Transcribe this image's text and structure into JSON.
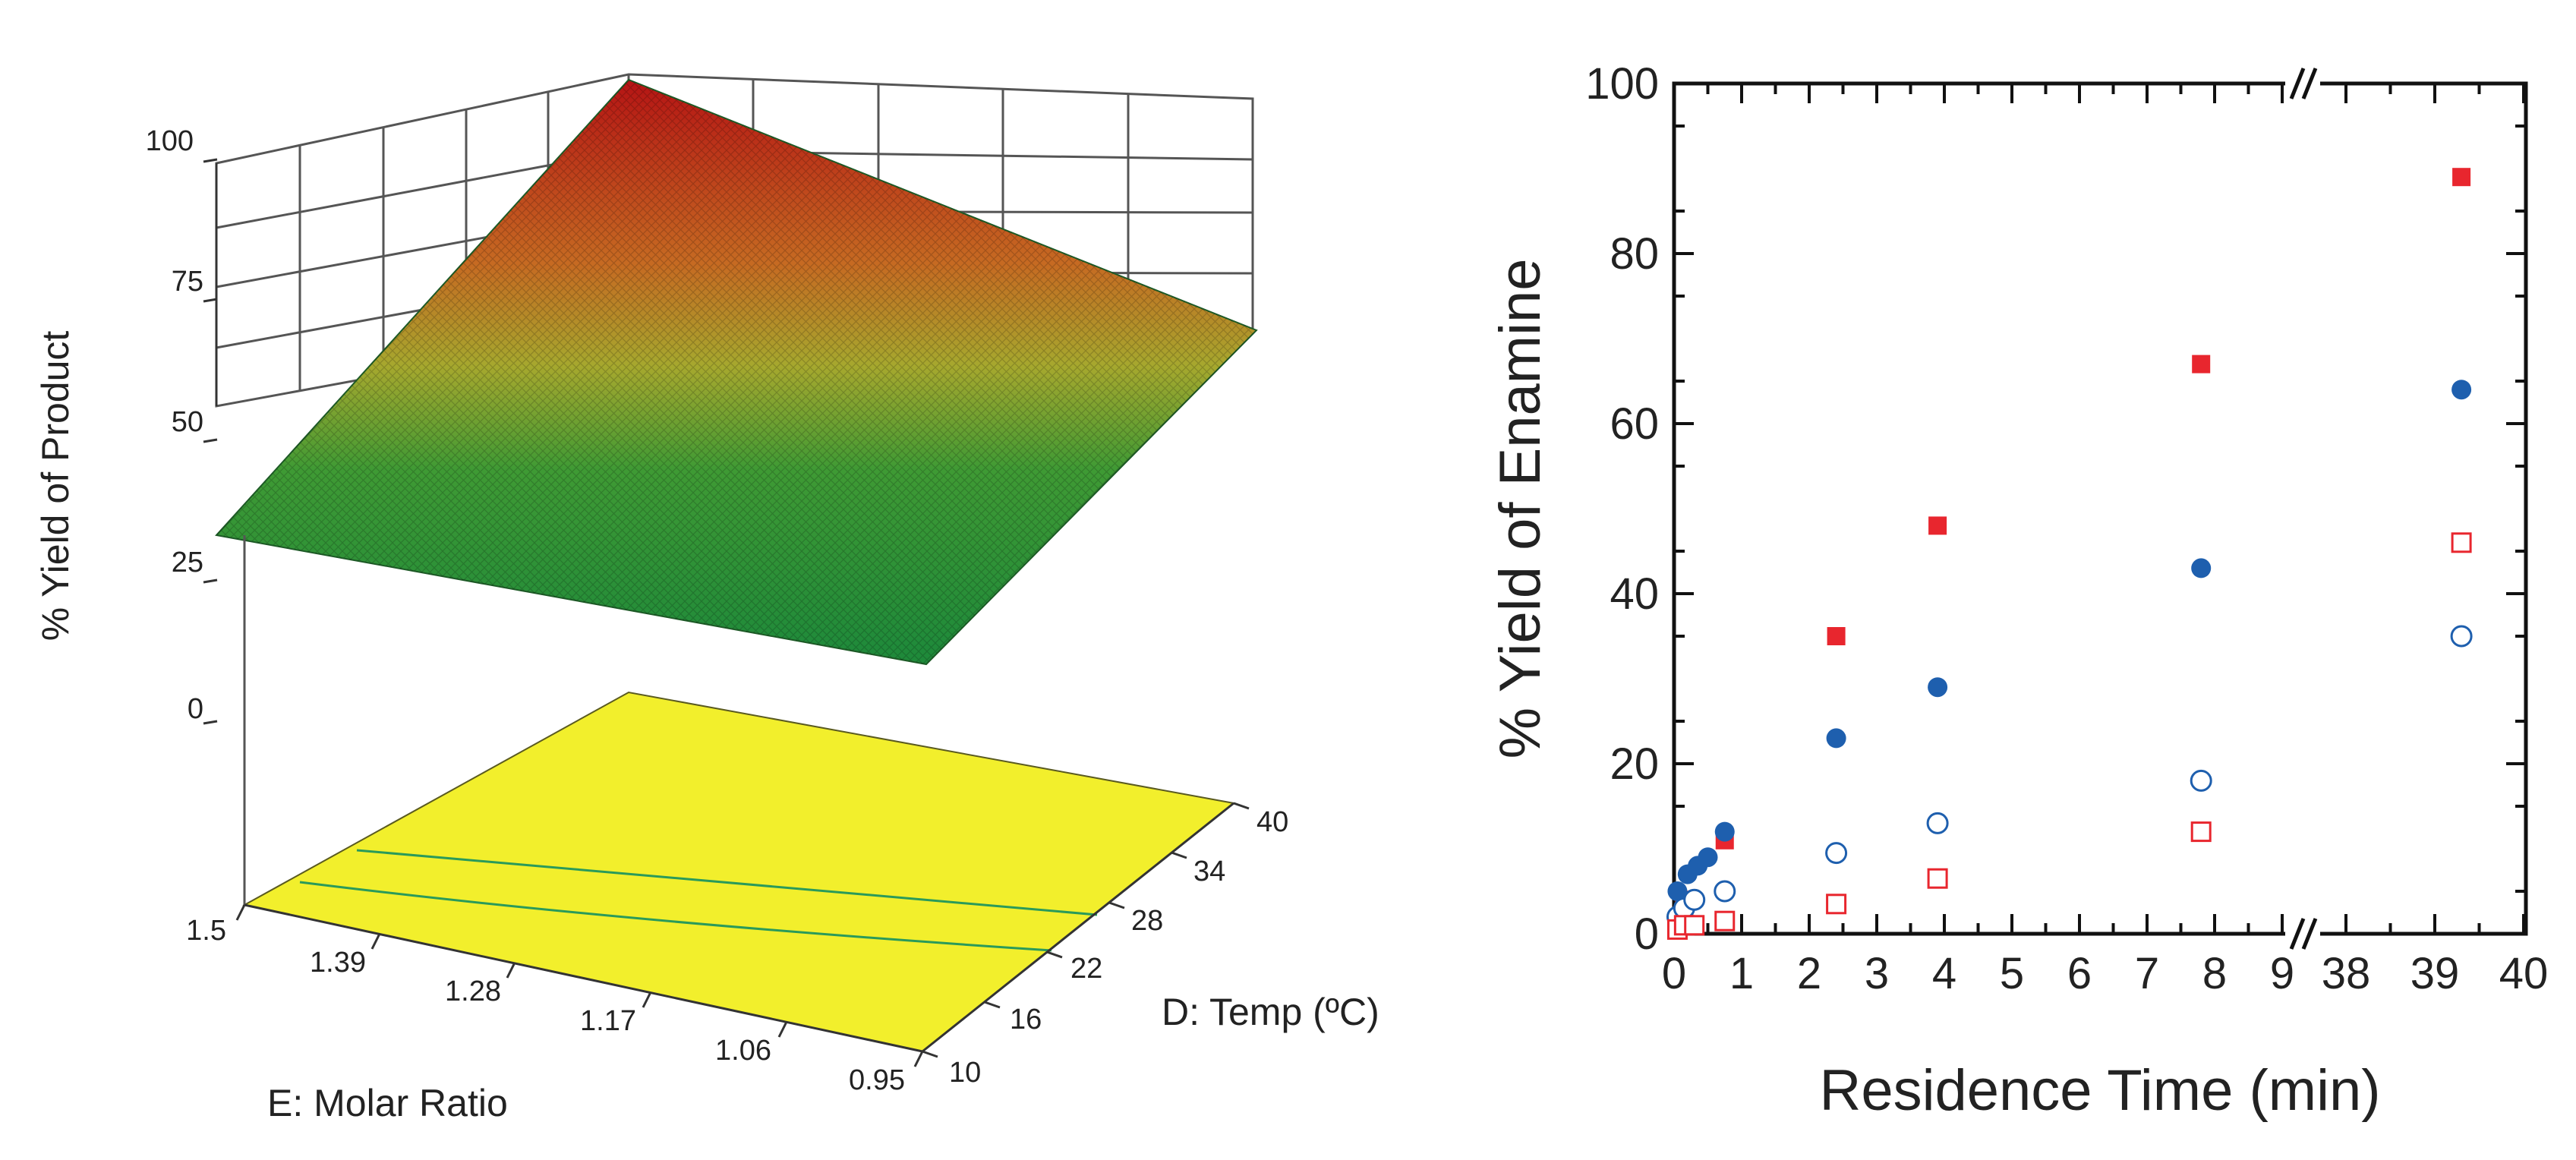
{
  "chart_data": [
    {
      "type": "surface3d",
      "zlabel": "% Yield of Product",
      "xlabel": "E: Molar Ratio",
      "ylabel": "D: Temp (ºC)",
      "z_ticks": [
        "0",
        "25",
        "50",
        "75",
        "100"
      ],
      "x_ticks": [
        "1.5",
        "1.39",
        "1.28",
        "1.17",
        "1.06",
        "0.95"
      ],
      "y_ticks": [
        "10",
        "16",
        "22",
        "28",
        "34",
        "40"
      ],
      "xlim": [
        0.95,
        1.5
      ],
      "ylim": [
        10,
        40
      ],
      "zlim": [
        0,
        100
      ],
      "surface_corners": [
        {
          "molar_ratio": 1.5,
          "temp": 10,
          "yield": 33
        },
        {
          "molar_ratio": 0.95,
          "temp": 10,
          "yield": 22
        },
        {
          "molar_ratio": 0.95,
          "temp": 40,
          "yield": 64
        },
        {
          "molar_ratio": 1.5,
          "temp": 40,
          "yield": 98
        }
      ],
      "contour_projection": "yellow base plane with contour lines",
      "colors": {
        "low": "#1f8a3a",
        "mid": "#b8b030",
        "high": "#c01818",
        "base": "#f2ef2c",
        "contour": "#2a9a5a"
      }
    },
    {
      "type": "scatter",
      "xlabel": "Residence Time (min)",
      "ylabel": "% Yield of Enamine",
      "xlim": [
        0,
        40
      ],
      "x_axis_break": [
        9.5,
        38
      ],
      "ylim": [
        0,
        100
      ],
      "x_ticks": [
        "0",
        "1",
        "2",
        "3",
        "4",
        "5",
        "6",
        "7",
        "8",
        "9",
        "38",
        "39",
        "40"
      ],
      "y_ticks": [
        "0",
        "20",
        "40",
        "60",
        "80",
        "100"
      ],
      "series": [
        {
          "name": "filled-square",
          "marker": "square",
          "filled": true,
          "color": "#e8262e",
          "x": [
            0.05,
            0.15,
            0.25,
            0.75,
            2.4,
            3.9,
            7.8,
            39.3
          ],
          "y": [
            1,
            3,
            4,
            11,
            35,
            48,
            67,
            89
          ]
        },
        {
          "name": "filled-circle",
          "marker": "circle",
          "filled": true,
          "color": "#1e5fae",
          "x": [
            0.05,
            0.2,
            0.35,
            0.5,
            0.75,
            2.4,
            3.9,
            7.8,
            39.3
          ],
          "y": [
            5,
            7,
            8,
            9,
            12,
            23,
            29,
            43,
            64
          ]
        },
        {
          "name": "open-circle",
          "marker": "circle",
          "filled": false,
          "color": "#1e5fae",
          "x": [
            0.05,
            0.15,
            0.3,
            0.75,
            2.4,
            3.9,
            7.8,
            39.3
          ],
          "y": [
            2,
            3,
            4,
            5,
            9.5,
            13,
            18,
            35
          ]
        },
        {
          "name": "open-square",
          "marker": "square",
          "filled": false,
          "color": "#e8262e",
          "x": [
            0.05,
            0.15,
            0.3,
            0.75,
            2.4,
            3.9,
            7.8,
            39.3
          ],
          "y": [
            0.5,
            1,
            1,
            1.5,
            3.5,
            6.5,
            12,
            46
          ]
        }
      ]
    }
  ]
}
